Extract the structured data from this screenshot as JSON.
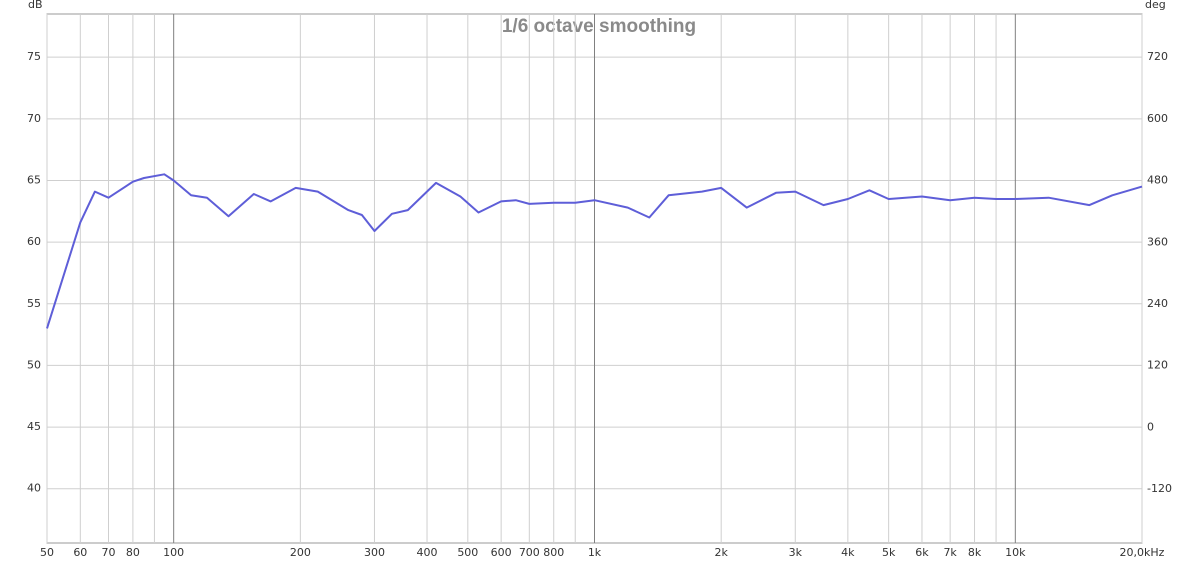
{
  "chart_data": {
    "type": "line",
    "title": "1/6 octave smoothing",
    "y_unit": "dB",
    "y2_unit": "deg",
    "xscale": "log",
    "grid": true,
    "xlim": [
      50,
      20000
    ],
    "xticks": [
      50,
      60,
      70,
      80,
      100,
      200,
      300,
      400,
      500,
      600,
      700,
      800,
      {
        "value": 1000,
        "label": "1k"
      },
      {
        "value": 2000,
        "label": "2k"
      },
      {
        "value": 3000,
        "label": "3k"
      },
      {
        "value": 4000,
        "label": "4k"
      },
      {
        "value": 5000,
        "label": "5k"
      },
      {
        "value": 6000,
        "label": "6k"
      },
      {
        "value": 7000,
        "label": "7k"
      },
      {
        "value": 8000,
        "label": "8k"
      },
      {
        "value": 10000,
        "label": "10k"
      },
      {
        "value": 20000,
        "label": "20,0kHz"
      }
    ],
    "xminor": [
      90,
      900,
      9000
    ],
    "ylim": [
      35.6,
      78.5
    ],
    "yticks": [
      40,
      45,
      50,
      55,
      60,
      65,
      70,
      75
    ],
    "y2lim": [
      -225,
      804
    ],
    "y2ticks": [
      -120,
      0,
      120,
      240,
      360,
      480,
      600,
      720
    ],
    "x": [
      50,
      60,
      65,
      70,
      80,
      85,
      95,
      100,
      110,
      120,
      135,
      155,
      170,
      195,
      220,
      260,
      280,
      300,
      330,
      360,
      420,
      480,
      530,
      600,
      650,
      700,
      800,
      900,
      1000,
      1200,
      1350,
      1500,
      1800,
      2000,
      2300,
      2700,
      3000,
      3500,
      4000,
      4500,
      5000,
      6000,
      7000,
      8000,
      9000,
      10000,
      12000,
      15000,
      17000,
      20000
    ],
    "series": [
      {
        "color": "#5e5ed8",
        "values": [
          53.0,
          61.6,
          64.1,
          63.6,
          64.9,
          65.2,
          65.5,
          65.0,
          63.8,
          63.6,
          62.1,
          63.9,
          63.3,
          64.4,
          64.1,
          62.6,
          62.2,
          60.9,
          62.3,
          62.6,
          64.8,
          63.7,
          62.4,
          63.3,
          63.4,
          63.1,
          63.2,
          63.2,
          63.4,
          62.8,
          62.0,
          63.8,
          64.1,
          64.4,
          62.8,
          64.0,
          64.1,
          63.0,
          63.5,
          64.2,
          63.5,
          63.7,
          63.4,
          63.6,
          63.5,
          63.5,
          63.6,
          63.0,
          63.8,
          64.5
        ]
      }
    ]
  }
}
